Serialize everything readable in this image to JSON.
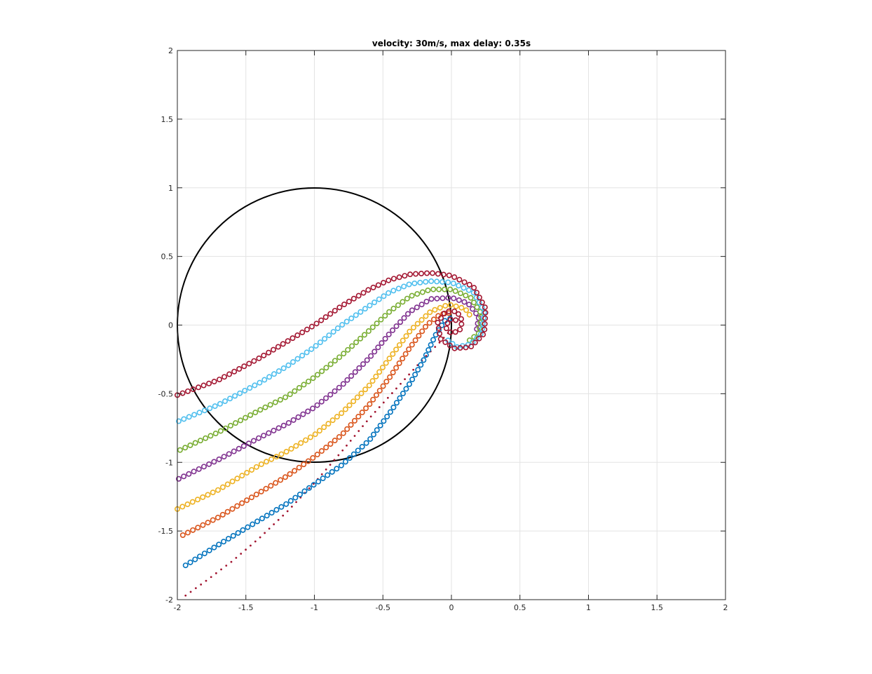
{
  "chart_data": {
    "type": "scatter",
    "title": "velocity: 30m/s, max delay: 0.35s",
    "xlabel": "",
    "ylabel": "",
    "xlim": [
      -2,
      2
    ],
    "ylim": [
      -2,
      2
    ],
    "xticks": [
      -2,
      -1.5,
      -1,
      -0.5,
      0,
      0.5,
      1,
      1.5,
      2
    ],
    "yticks": [
      -2,
      -1.5,
      -1,
      -0.5,
      0,
      0.5,
      1,
      1.5,
      2
    ],
    "xtick_labels": [
      "-2",
      "-1.5",
      "-1",
      "-0.5",
      "0",
      "0.5",
      "1",
      "1.5",
      "2"
    ],
    "ytick_labels": [
      "-2",
      "-1.5",
      "-1",
      "-0.5",
      "0",
      "0.5",
      "1",
      "1.5",
      "2"
    ],
    "grid": true,
    "aspect": "equal",
    "reference_circle": {
      "center": [
        -1,
        0
      ],
      "radius": 1,
      "color": "#000000"
    },
    "series": [
      {
        "color": "#a2142f",
        "marker": "dot",
        "points": [
          [
            -1.94,
            -1.97
          ],
          [
            -1.8,
            -1.87
          ],
          [
            -1.6,
            -1.72
          ],
          [
            -1.4,
            -1.55
          ],
          [
            -1.2,
            -1.36
          ],
          [
            -1.0,
            -1.15
          ],
          [
            -0.8,
            -0.92
          ],
          [
            -0.6,
            -0.68
          ],
          [
            -0.4,
            -0.46
          ],
          [
            -0.2,
            -0.24
          ],
          [
            -0.08,
            -0.12
          ],
          [
            0.0,
            -0.03
          ]
        ]
      },
      {
        "color": "#0072bd",
        "marker": "circle",
        "points": [
          [
            -1.94,
            -1.75
          ],
          [
            -1.7,
            -1.6
          ],
          [
            -1.4,
            -1.42
          ],
          [
            -1.2,
            -1.3
          ],
          [
            -1.0,
            -1.16
          ],
          [
            -0.8,
            -1.02
          ],
          [
            -0.6,
            -0.84
          ],
          [
            -0.45,
            -0.64
          ],
          [
            -0.3,
            -0.42
          ],
          [
            -0.2,
            -0.25
          ],
          [
            -0.12,
            -0.08
          ],
          [
            -0.05,
            0.03
          ],
          [
            0.02,
            0.06
          ]
        ]
      },
      {
        "color": "#d95319",
        "marker": "circle",
        "points": [
          [
            -1.96,
            -1.53
          ],
          [
            -1.7,
            -1.4
          ],
          [
            -1.4,
            -1.22
          ],
          [
            -1.2,
            -1.1
          ],
          [
            -1.0,
            -0.96
          ],
          [
            -0.8,
            -0.8
          ],
          [
            -0.6,
            -0.58
          ],
          [
            -0.45,
            -0.38
          ],
          [
            -0.3,
            -0.16
          ],
          [
            -0.18,
            0.0
          ],
          [
            -0.08,
            0.08
          ],
          [
            0.0,
            0.09
          ]
        ]
      },
      {
        "color": "#edb120",
        "marker": "circle",
        "points": [
          [
            -2.0,
            -1.34
          ],
          [
            -1.7,
            -1.2
          ],
          [
            -1.4,
            -1.02
          ],
          [
            -1.2,
            -0.92
          ],
          [
            -1.0,
            -0.8
          ],
          [
            -0.8,
            -0.64
          ],
          [
            -0.6,
            -0.44
          ],
          [
            -0.45,
            -0.24
          ],
          [
            -0.3,
            -0.04
          ],
          [
            -0.15,
            0.1
          ],
          [
            -0.02,
            0.15
          ],
          [
            0.1,
            0.12
          ],
          [
            0.15,
            0.05
          ]
        ]
      },
      {
        "color": "#7e2f8e",
        "marker": "circle",
        "points": [
          [
            -1.99,
            -1.12
          ],
          [
            -1.7,
            -0.98
          ],
          [
            -1.4,
            -0.82
          ],
          [
            -1.2,
            -0.72
          ],
          [
            -1.0,
            -0.6
          ],
          [
            -0.8,
            -0.44
          ],
          [
            -0.6,
            -0.24
          ],
          [
            -0.45,
            -0.06
          ],
          [
            -0.3,
            0.1
          ],
          [
            -0.15,
            0.19
          ],
          [
            0.0,
            0.2
          ],
          [
            0.12,
            0.16
          ],
          [
            0.2,
            0.06
          ],
          [
            0.18,
            -0.06
          ]
        ]
      },
      {
        "color": "#77ac30",
        "marker": "circle",
        "points": [
          [
            -1.98,
            -0.91
          ],
          [
            -1.7,
            -0.78
          ],
          [
            -1.4,
            -0.62
          ],
          [
            -1.2,
            -0.52
          ],
          [
            -1.0,
            -0.38
          ],
          [
            -0.8,
            -0.22
          ],
          [
            -0.6,
            -0.04
          ],
          [
            -0.45,
            0.1
          ],
          [
            -0.3,
            0.21
          ],
          [
            -0.15,
            0.26
          ],
          [
            0.0,
            0.26
          ],
          [
            0.14,
            0.2
          ],
          [
            0.22,
            0.08
          ],
          [
            0.2,
            -0.06
          ],
          [
            0.12,
            -0.12
          ]
        ]
      },
      {
        "color": "#4dbeee",
        "marker": "circle",
        "points": [
          [
            -1.99,
            -0.7
          ],
          [
            -1.7,
            -0.58
          ],
          [
            -1.4,
            -0.42
          ],
          [
            -1.2,
            -0.3
          ],
          [
            -1.0,
            -0.16
          ],
          [
            -0.8,
            0.0
          ],
          [
            -0.6,
            0.14
          ],
          [
            -0.45,
            0.24
          ],
          [
            -0.3,
            0.3
          ],
          [
            -0.15,
            0.32
          ],
          [
            0.0,
            0.31
          ],
          [
            0.16,
            0.24
          ],
          [
            0.24,
            0.1
          ],
          [
            0.22,
            -0.06
          ],
          [
            0.14,
            -0.14
          ],
          [
            0.04,
            -0.16
          ],
          [
            -0.04,
            -0.1
          ]
        ]
      },
      {
        "color": "#a2142f",
        "marker": "circle",
        "points": [
          [
            -2.0,
            -0.51
          ],
          [
            -1.7,
            -0.4
          ],
          [
            -1.4,
            -0.24
          ],
          [
            -1.2,
            -0.12
          ],
          [
            -1.0,
            0.0
          ],
          [
            -0.8,
            0.14
          ],
          [
            -0.6,
            0.26
          ],
          [
            -0.45,
            0.33
          ],
          [
            -0.3,
            0.37
          ],
          [
            -0.15,
            0.38
          ],
          [
            0.0,
            0.36
          ],
          [
            0.16,
            0.28
          ],
          [
            0.25,
            0.12
          ],
          [
            0.24,
            -0.06
          ],
          [
            0.14,
            -0.16
          ],
          [
            0.02,
            -0.17
          ],
          [
            -0.08,
            -0.1
          ],
          [
            -0.1,
            0.02
          ],
          [
            -0.04,
            0.1
          ],
          [
            0.04,
            0.1
          ],
          [
            0.08,
            0.03
          ],
          [
            0.06,
            -0.04
          ],
          [
            0.0,
            -0.06
          ],
          [
            -0.04,
            -0.02
          ],
          [
            -0.02,
            0.04
          ],
          [
            0.03,
            0.04
          ],
          [
            0.04,
            0.0
          ]
        ]
      }
    ]
  }
}
